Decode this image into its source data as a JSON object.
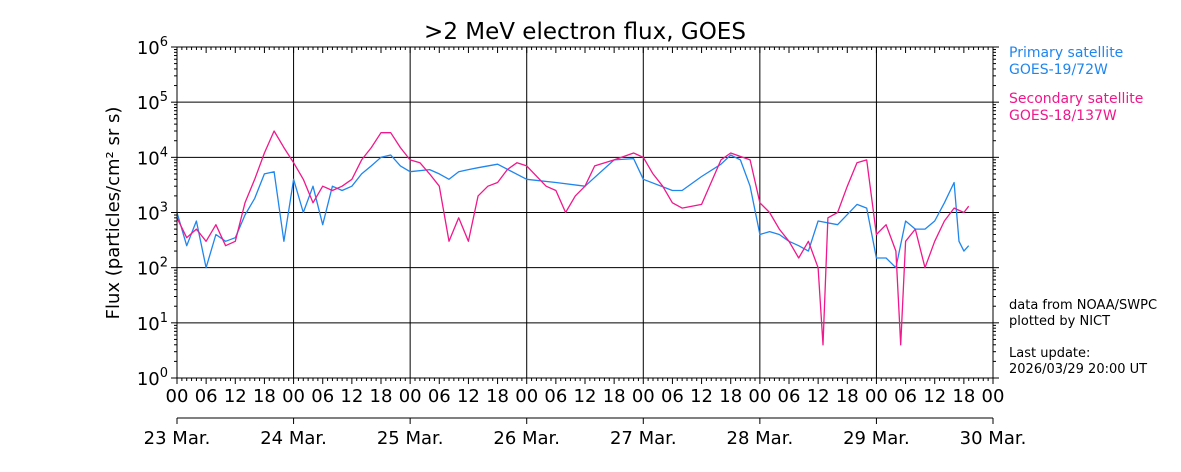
{
  "chart_data": {
    "type": "line",
    "title": ">2 MeV electron flux, GOES",
    "ylabel": "Flux (particles/cm² sr s)",
    "xlabel": "",
    "y_scale": "log",
    "ylim": [
      1,
      1000000
    ],
    "y_tick_exponents": [
      "0",
      "1",
      "2",
      "3",
      "4",
      "5",
      "6"
    ],
    "x_range": [
      "2026-03-23T00:00",
      "2026-03-30T00:00"
    ],
    "x_hour_labels": [
      "00",
      "06",
      "12",
      "18"
    ],
    "date_labels": [
      "23 Mar.",
      "24 Mar.",
      "25 Mar.",
      "26 Mar.",
      "27 Mar.",
      "28 Mar.",
      "29 Mar.",
      "30 Mar."
    ],
    "grid": true,
    "legend_position": "right",
    "series": [
      {
        "name": "Primary satellite GOES-19/72W",
        "color": "#1f86ee",
        "points": [
          [
            "2026-03-23T00:00",
            1000
          ],
          [
            "2026-03-23T02:00",
            250
          ],
          [
            "2026-03-23T04:00",
            700
          ],
          [
            "2026-03-23T06:00",
            100
          ],
          [
            "2026-03-23T08:00",
            400
          ],
          [
            "2026-03-23T10:00",
            300
          ],
          [
            "2026-03-23T12:00",
            350
          ],
          [
            "2026-03-23T14:00",
            900
          ],
          [
            "2026-03-23T16:00",
            1800
          ],
          [
            "2026-03-23T18:00",
            5000
          ],
          [
            "2026-03-23T20:00",
            5500
          ],
          [
            "2026-03-23T22:00",
            300
          ],
          [
            "2026-03-24T00:00",
            4000
          ],
          [
            "2026-03-24T02:00",
            1000
          ],
          [
            "2026-03-24T04:00",
            3000
          ],
          [
            "2026-03-24T06:00",
            600
          ],
          [
            "2026-03-24T08:00",
            3000
          ],
          [
            "2026-03-24T10:00",
            2500
          ],
          [
            "2026-03-24T12:00",
            3000
          ],
          [
            "2026-03-24T14:00",
            5000
          ],
          [
            "2026-03-24T16:00",
            7000
          ],
          [
            "2026-03-24T18:00",
            10000
          ],
          [
            "2026-03-24T20:00",
            11000
          ],
          [
            "2026-03-24T22:00",
            7000
          ],
          [
            "2026-03-25T00:00",
            5500
          ],
          [
            "2026-03-25T04:00",
            6000
          ],
          [
            "2026-03-25T06:00",
            5000
          ],
          [
            "2026-03-25T08:00",
            4000
          ],
          [
            "2026-03-25T10:00",
            5500
          ],
          [
            "2026-03-25T12:00",
            6000
          ],
          [
            "2026-03-25T14:00",
            6500
          ],
          [
            "2026-03-25T18:00",
            7500
          ],
          [
            "2026-03-26T00:00",
            4000
          ],
          [
            "2026-03-26T06:00",
            3500
          ],
          [
            "2026-03-26T12:00",
            3000
          ],
          [
            "2026-03-26T18:00",
            9000
          ],
          [
            "2026-03-26T22:00",
            9500
          ],
          [
            "2026-03-27T00:00",
            4000
          ],
          [
            "2026-03-27T06:00",
            2500
          ],
          [
            "2026-03-27T08:00",
            2500
          ],
          [
            "2026-03-27T12:00",
            4500
          ],
          [
            "2026-03-27T16:00",
            7500
          ],
          [
            "2026-03-27T18:00",
            11000
          ],
          [
            "2026-03-27T20:00",
            9000
          ],
          [
            "2026-03-27T22:00",
            3000
          ],
          [
            "2026-03-28T00:00",
            400
          ],
          [
            "2026-03-28T02:00",
            450
          ],
          [
            "2026-03-28T04:00",
            400
          ],
          [
            "2026-03-28T06:00",
            300
          ],
          [
            "2026-03-28T08:00",
            250
          ],
          [
            "2026-03-28T10:00",
            200
          ],
          [
            "2026-03-28T12:00",
            700
          ],
          [
            "2026-03-28T16:00",
            600
          ],
          [
            "2026-03-28T20:00",
            1400
          ],
          [
            "2026-03-28T22:00",
            1200
          ],
          [
            "2026-03-29T00:00",
            150
          ],
          [
            "2026-03-29T02:00",
            150
          ],
          [
            "2026-03-29T04:00",
            100
          ],
          [
            "2026-03-29T06:00",
            700
          ],
          [
            "2026-03-29T08:00",
            500
          ],
          [
            "2026-03-29T10:00",
            500
          ],
          [
            "2026-03-29T12:00",
            700
          ],
          [
            "2026-03-29T14:00",
            1500
          ],
          [
            "2026-03-29T16:00",
            3500
          ],
          [
            "2026-03-29T17:00",
            300
          ],
          [
            "2026-03-29T18:00",
            200
          ],
          [
            "2026-03-29T19:00",
            250
          ]
        ]
      },
      {
        "name": "Secondary satellite GOES-18/137W",
        "color": "#f0188c",
        "points": [
          [
            "2026-03-23T00:00",
            800
          ],
          [
            "2026-03-23T02:00",
            350
          ],
          [
            "2026-03-23T04:00",
            500
          ],
          [
            "2026-03-23T06:00",
            300
          ],
          [
            "2026-03-23T08:00",
            600
          ],
          [
            "2026-03-23T10:00",
            250
          ],
          [
            "2026-03-23T12:00",
            300
          ],
          [
            "2026-03-23T14:00",
            1500
          ],
          [
            "2026-03-23T16:00",
            4000
          ],
          [
            "2026-03-23T18:00",
            12000
          ],
          [
            "2026-03-23T20:00",
            30000
          ],
          [
            "2026-03-23T22:00",
            15000
          ],
          [
            "2026-03-24T00:00",
            8000
          ],
          [
            "2026-03-24T02:00",
            4000
          ],
          [
            "2026-03-24T04:00",
            1500
          ],
          [
            "2026-03-24T06:00",
            3000
          ],
          [
            "2026-03-24T08:00",
            2500
          ],
          [
            "2026-03-24T10:00",
            3000
          ],
          [
            "2026-03-24T12:00",
            4000
          ],
          [
            "2026-03-24T14:00",
            9000
          ],
          [
            "2026-03-24T16:00",
            15000
          ],
          [
            "2026-03-24T18:00",
            28000
          ],
          [
            "2026-03-24T20:00",
            28000
          ],
          [
            "2026-03-24T22:00",
            15000
          ],
          [
            "2026-03-25T00:00",
            9000
          ],
          [
            "2026-03-25T02:00",
            8000
          ],
          [
            "2026-03-25T04:00",
            5000
          ],
          [
            "2026-03-25T06:00",
            3000
          ],
          [
            "2026-03-25T08:00",
            300
          ],
          [
            "2026-03-25T10:00",
            800
          ],
          [
            "2026-03-25T12:00",
            300
          ],
          [
            "2026-03-25T14:00",
            2000
          ],
          [
            "2026-03-25T16:00",
            3000
          ],
          [
            "2026-03-25T18:00",
            3500
          ],
          [
            "2026-03-25T20:00",
            6000
          ],
          [
            "2026-03-25T22:00",
            8000
          ],
          [
            "2026-03-26T00:00",
            7000
          ],
          [
            "2026-03-26T04:00",
            3000
          ],
          [
            "2026-03-26T06:00",
            2500
          ],
          [
            "2026-03-26T08:00",
            1000
          ],
          [
            "2026-03-26T10:00",
            2000
          ],
          [
            "2026-03-26T12:00",
            3000
          ],
          [
            "2026-03-26T14:00",
            7000
          ],
          [
            "2026-03-26T18:00",
            9000
          ],
          [
            "2026-03-26T22:00",
            12000
          ],
          [
            "2026-03-27T00:00",
            10000
          ],
          [
            "2026-03-27T02:00",
            5000
          ],
          [
            "2026-03-27T04:00",
            3000
          ],
          [
            "2026-03-27T06:00",
            1500
          ],
          [
            "2026-03-27T08:00",
            1200
          ],
          [
            "2026-03-27T12:00",
            1400
          ],
          [
            "2026-03-27T16:00",
            9000
          ],
          [
            "2026-03-27T18:00",
            12000
          ],
          [
            "2026-03-27T22:00",
            9000
          ],
          [
            "2026-03-28T00:00",
            1500
          ],
          [
            "2026-03-28T02:00",
            1000
          ],
          [
            "2026-03-28T04:00",
            500
          ],
          [
            "2026-03-28T06:00",
            300
          ],
          [
            "2026-03-28T08:00",
            150
          ],
          [
            "2026-03-28T10:00",
            300
          ],
          [
            "2026-03-28T12:00",
            100
          ],
          [
            "2026-03-28T13:00",
            4
          ],
          [
            "2026-03-28T14:00",
            800
          ],
          [
            "2026-03-28T16:00",
            1000
          ],
          [
            "2026-03-28T18:00",
            3000
          ],
          [
            "2026-03-28T20:00",
            8000
          ],
          [
            "2026-03-28T22:00",
            9000
          ],
          [
            "2026-03-29T00:00",
            400
          ],
          [
            "2026-03-29T02:00",
            600
          ],
          [
            "2026-03-29T04:00",
            200
          ],
          [
            "2026-03-29T05:00",
            4
          ],
          [
            "2026-03-29T06:00",
            300
          ],
          [
            "2026-03-29T08:00",
            500
          ],
          [
            "2026-03-29T10:00",
            100
          ],
          [
            "2026-03-29T12:00",
            300
          ],
          [
            "2026-03-29T14:00",
            700
          ],
          [
            "2026-03-29T16:00",
            1200
          ],
          [
            "2026-03-29T18:00",
            1000
          ],
          [
            "2026-03-29T19:00",
            1300
          ]
        ]
      }
    ]
  },
  "legend": {
    "primary_line1": "Primary satellite",
    "primary_line2": "GOES-19/72W",
    "secondary_line1": "Secondary satellite",
    "secondary_line2": "GOES-18/137W"
  },
  "notes": {
    "source_line1": "data from NOAA/SWPC",
    "source_line2": "plotted by NICT",
    "update_label": "Last update:",
    "update_value": "2026/03/29 20:00 UT"
  }
}
